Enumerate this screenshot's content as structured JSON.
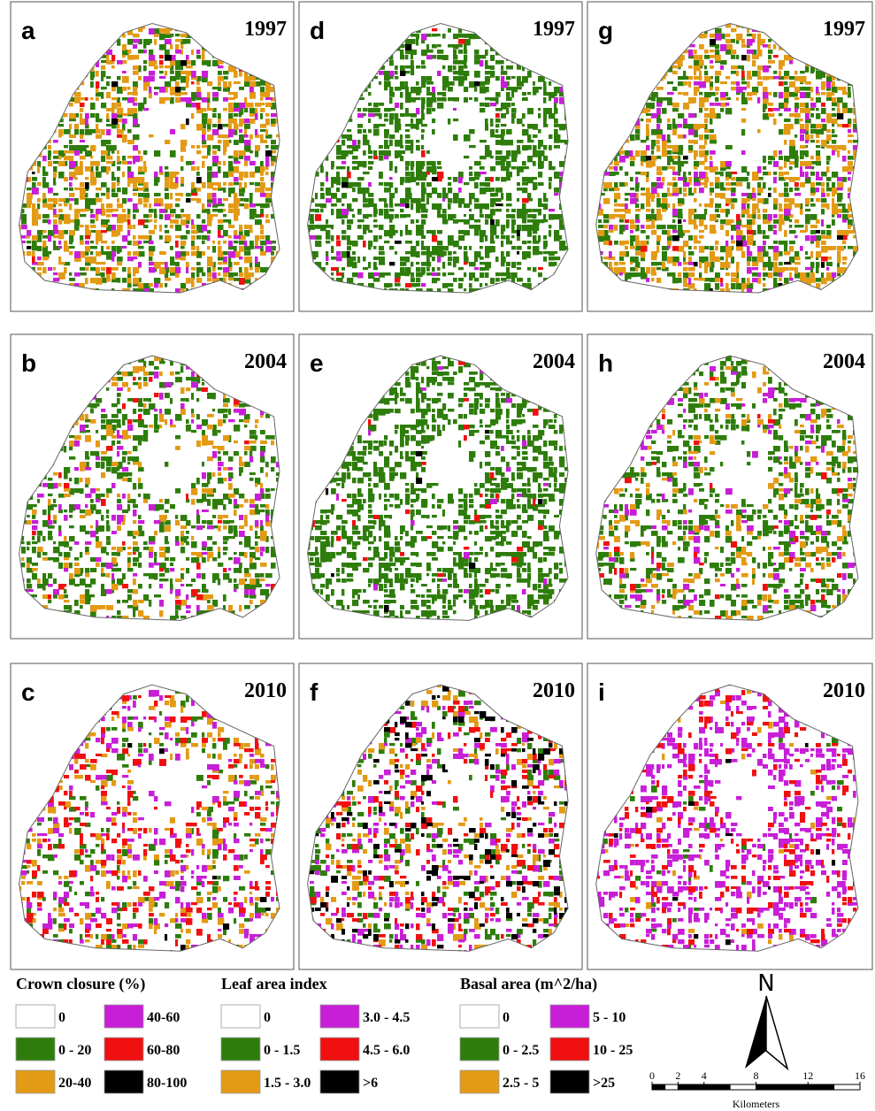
{
  "panels": [
    {
      "letter": "a",
      "year": "1997"
    },
    {
      "letter": "b",
      "year": "2004"
    },
    {
      "letter": "c",
      "year": "2010"
    },
    {
      "letter": "d",
      "year": "1997"
    },
    {
      "letter": "e",
      "year": "2004"
    },
    {
      "letter": "f",
      "year": "2010"
    },
    {
      "letter": "g",
      "year": "1997"
    },
    {
      "letter": "h",
      "year": "2004"
    },
    {
      "letter": "i",
      "year": "2010"
    }
  ],
  "legends": [
    {
      "title": "Crown closure (%)",
      "items": [
        {
          "label": "0",
          "color": "#ffffff"
        },
        {
          "label": "0 - 20",
          "color": "#2e7d0b"
        },
        {
          "label": "20-40",
          "color": "#e39a14"
        },
        {
          "label": "40-60",
          "color": "#c81ed8"
        },
        {
          "label": "60-80",
          "color": "#f01010"
        },
        {
          "label": "80-100",
          "color": "#000000"
        }
      ]
    },
    {
      "title": "Leaf area index",
      "items": [
        {
          "label": "0",
          "color": "#ffffff"
        },
        {
          "label": "0 - 1.5",
          "color": "#2e7d0b"
        },
        {
          "label": "1.5 - 3.0",
          "color": "#e39a14"
        },
        {
          "label": "3.0 - 4.5",
          "color": "#c81ed8"
        },
        {
          "label": "4.5 - 6.0",
          "color": "#f01010"
        },
        {
          "label": ">6",
          "color": "#000000"
        }
      ]
    },
    {
      "title": "Basal area (m^2/ha)",
      "items": [
        {
          "label": "0",
          "color": "#ffffff"
        },
        {
          "label": "0 - 2.5",
          "color": "#2e7d0b"
        },
        {
          "label": "2.5 - 5",
          "color": "#e39a14"
        },
        {
          "label": "5 - 10",
          "color": "#c81ed8"
        },
        {
          "label": "10 - 25",
          "color": "#f01010"
        },
        {
          "label": ">25",
          "color": "#000000"
        }
      ]
    }
  ],
  "north": "N",
  "scale_bar": {
    "ticks": [
      0,
      2,
      4,
      8,
      12,
      16
    ],
    "unit": "Kilometers"
  }
}
